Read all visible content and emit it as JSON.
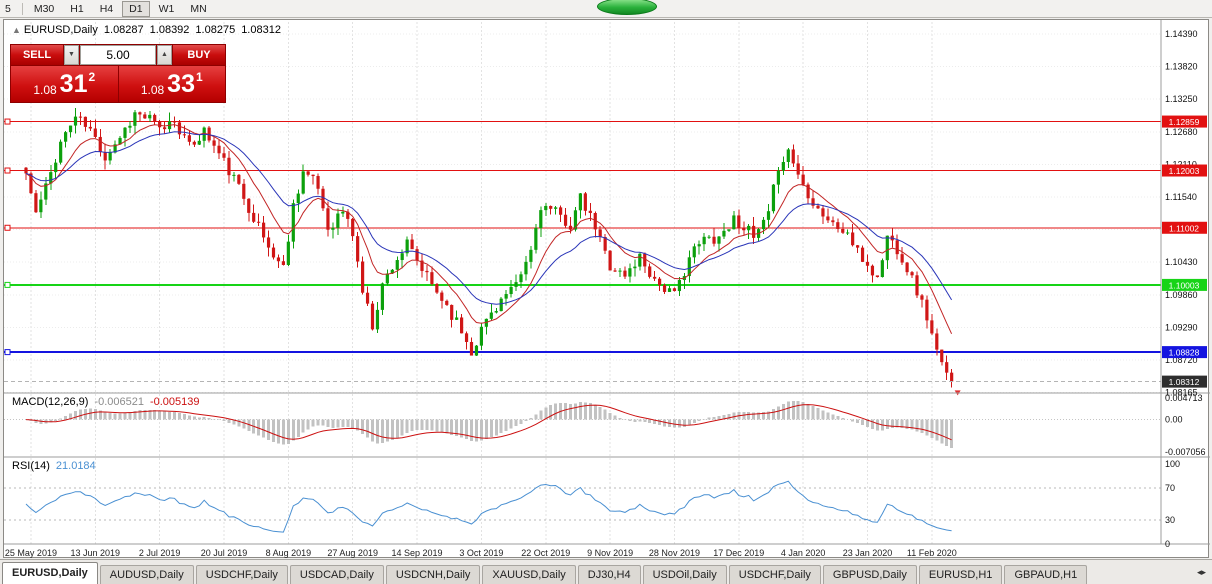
{
  "colors": {
    "bull": "#0ca00c",
    "bear": "#d01616",
    "ma_fast": "#c22525",
    "ma_slow": "#2a35b8",
    "macd_hist": "#c2c2c2",
    "macd_signal": "#cc1111",
    "rsi_line": "#4a90d2",
    "grid": "#e2e2e2",
    "tag_current": "#2e2e2e",
    "pane_divider": "#9c9c9c"
  },
  "toolbar": {
    "periods": [
      "5",
      "M30",
      "H1",
      "H4",
      "D1",
      "W1",
      "MN"
    ],
    "active_period": "D1"
  },
  "chart": {
    "title_symbol": "EURUSD,Daily",
    "ohlc": {
      "open": "1.08287",
      "high": "1.08392",
      "low": "1.08275",
      "close": "1.08312"
    },
    "trade_panel": {
      "sell_label": "SELL",
      "buy_label": "BUY",
      "volume": "5.00",
      "bid_prefix": "1.08",
      "bid_big": "31",
      "bid_sup": "2",
      "ask_prefix": "1.08",
      "ask_big": "33",
      "ask_sup": "1"
    },
    "levels": [
      {
        "price": 1.12859,
        "label": "1.12859",
        "color": "#e21111",
        "width": 1
      },
      {
        "price": 1.12003,
        "label": "1.12003",
        "color": "#e21111",
        "width": 1
      },
      {
        "price": 1.11002,
        "label": "1.11002",
        "color": "#e21111",
        "width": 1
      },
      {
        "price": 1.10003,
        "label": "1.10003",
        "color": "#17d417",
        "width": 2
      },
      {
        "price": 1.08828,
        "label": "1.08828",
        "color": "#1414e0",
        "width": 2
      }
    ],
    "current_price": {
      "value": 1.08312,
      "label": "1.08312"
    },
    "y_axis_labels": [
      "1.14390",
      "1.13820",
      "1.13250",
      "1.12680",
      "1.12110",
      "1.11540",
      "1.11000",
      "1.10430",
      "1.09860",
      "1.09290",
      "1.08720",
      "1.08165"
    ],
    "x_axis_labels": [
      "25 May 2019",
      "13 Jun 2019",
      "2 Jul 2019",
      "20 Jul 2019",
      "8 Aug 2019",
      "27 Aug 2019",
      "14 Sep 2019",
      "3 Oct 2019",
      "22 Oct 2019",
      "9 Nov 2019",
      "28 Nov 2019",
      "17 Dec 2019",
      "4 Jan 2020",
      "23 Jan 2020",
      "11 Feb 2020"
    ]
  },
  "macd": {
    "title": "MACD(12,26,9)",
    "main_value": "-0.006521",
    "signal_value": "-0.005139",
    "axis": [
      "0.004713",
      "0.00",
      "-0.007056"
    ]
  },
  "rsi": {
    "title": "RSI(14)",
    "value": "21.0184",
    "axis": [
      "100",
      "70",
      "30",
      "0"
    ]
  },
  "tabs": {
    "items": [
      "EURUSD,Daily",
      "AUDUSD,Daily",
      "USDCHF,Daily",
      "USDCAD,Daily",
      "USDCNH,Daily",
      "XAUUSD,Daily",
      "DJ30,H4",
      "USDOil,Daily",
      "USDCHF,Daily",
      "GBPUSD,Daily",
      "EURUSD,H1",
      "GBPAUD,H1"
    ],
    "active_index": 0
  },
  "chart_data": {
    "type": "candlestick",
    "symbol": "EURUSD",
    "timeframe": "Daily",
    "count": 188,
    "seed": 11,
    "noise": 0.0022,
    "wick": 0.0016,
    "last_close": 1.08312,
    "anchors": [
      [
        0,
        1.1195
      ],
      [
        2,
        1.1125
      ],
      [
        4,
        1.117
      ],
      [
        7,
        1.125
      ],
      [
        10,
        1.1295
      ],
      [
        13,
        1.127
      ],
      [
        16,
        1.1225
      ],
      [
        19,
        1.126
      ],
      [
        22,
        1.13
      ],
      [
        25,
        1.129
      ],
      [
        27,
        1.127
      ],
      [
        30,
        1.129
      ],
      [
        33,
        1.124
      ],
      [
        36,
        1.127
      ],
      [
        40,
        1.1215
      ],
      [
        43,
        1.117
      ],
      [
        46,
        1.112
      ],
      [
        49,
        1.1065
      ],
      [
        52,
        1.103
      ],
      [
        54,
        1.114
      ],
      [
        56,
        1.12
      ],
      [
        59,
        1.117
      ],
      [
        61,
        1.11
      ],
      [
        64,
        1.113
      ],
      [
        66,
        1.109
      ],
      [
        68,
        1.099
      ],
      [
        70,
        1.093
      ],
      [
        72,
        1.1
      ],
      [
        74,
        1.1035
      ],
      [
        77,
        1.107
      ],
      [
        79,
        1.104
      ],
      [
        82,
        1.1
      ],
      [
        85,
        1.0965
      ],
      [
        88,
        1.092
      ],
      [
        90,
        1.0885
      ],
      [
        93,
        1.094
      ],
      [
        96,
        1.0975
      ],
      [
        99,
        1.0995
      ],
      [
        102,
        1.106
      ],
      [
        104,
        1.114
      ],
      [
        107,
        1.1125
      ],
      [
        110,
        1.1105
      ],
      [
        112,
        1.115
      ],
      [
        115,
        1.11
      ],
      [
        118,
        1.1035
      ],
      [
        121,
        1.1015
      ],
      [
        124,
        1.105
      ],
      [
        127,
        1.101
      ],
      [
        129,
        1.0995
      ],
      [
        131,
        1.098
      ],
      [
        134,
        1.105
      ],
      [
        137,
        1.108
      ],
      [
        140,
        1.1085
      ],
      [
        143,
        1.1115
      ],
      [
        145,
        1.1105
      ],
      [
        147,
        1.108
      ],
      [
        150,
        1.112
      ],
      [
        152,
        1.121
      ],
      [
        154,
        1.1235
      ],
      [
        157,
        1.1175
      ],
      [
        160,
        1.1135
      ],
      [
        163,
        1.1105
      ],
      [
        166,
        1.109
      ],
      [
        168,
        1.1055
      ],
      [
        170,
        1.1035
      ],
      [
        172,
        1.101
      ],
      [
        174,
        1.1085
      ],
      [
        176,
        1.1065
      ],
      [
        178,
        1.103
      ],
      [
        180,
        1.099
      ],
      [
        182,
        1.0945
      ],
      [
        184,
        1.088
      ],
      [
        186,
        1.084
      ],
      [
        187,
        1.08312
      ]
    ],
    "ma_fast": {
      "period": 10
    },
    "ma_slow": {
      "period": 21
    },
    "macd": {
      "fast": 12,
      "slow": 26,
      "signal": 9
    },
    "rsi_period": 14
  }
}
